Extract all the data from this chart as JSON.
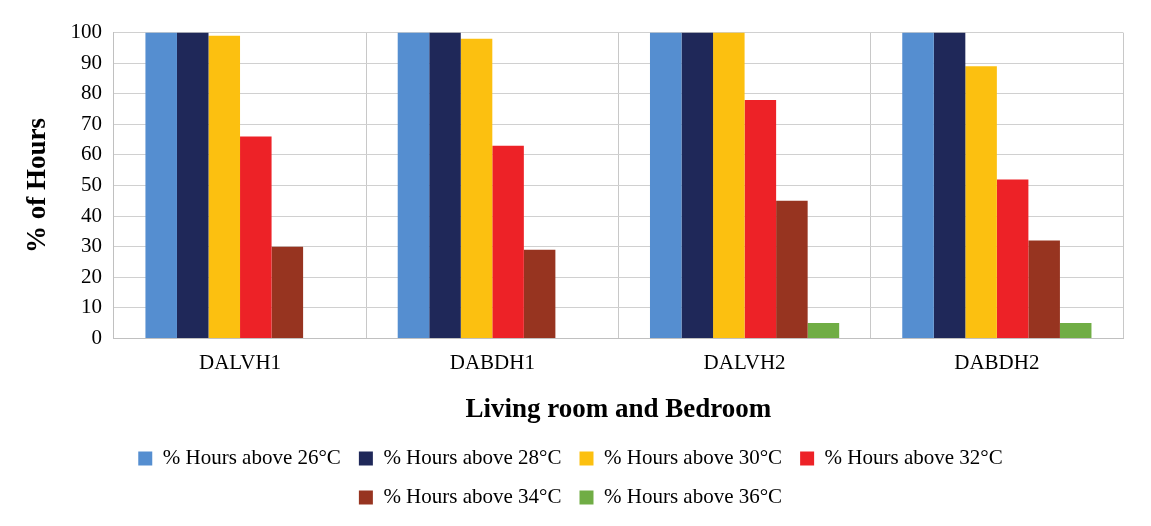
{
  "chart_data": {
    "type": "bar",
    "xlabel": "Living room and Bedroom",
    "ylabel": "% of Hours",
    "categories": [
      "DALVH1",
      "DABDH1",
      "DALVH2",
      "DABDH2"
    ],
    "series": [
      {
        "name": "% Hours above 26°C",
        "color": "#558ed0",
        "values": [
          100,
          100,
          100,
          100
        ]
      },
      {
        "name": "% Hours above 28°C",
        "color": "#1f2859",
        "values": [
          100,
          100,
          100,
          100
        ]
      },
      {
        "name": "% Hours above 30°C",
        "color": "#fcc010",
        "values": [
          99,
          98,
          100,
          89
        ]
      },
      {
        "name": "% Hours above 32°C",
        "color": "#ed2227",
        "values": [
          66,
          63,
          78,
          52
        ]
      },
      {
        "name": "% Hours above 34°C",
        "color": "#973420",
        "values": [
          30,
          29,
          45,
          32
        ]
      },
      {
        "name": "% Hours above 36°C",
        "color": "#70ad45",
        "values": [
          0,
          0,
          5,
          5
        ]
      }
    ],
    "ylim": [
      0,
      100
    ],
    "yticks": [
      0,
      10,
      20,
      30,
      40,
      50,
      60,
      70,
      80,
      90,
      100
    ],
    "grid": true,
    "legend": "bottom"
  }
}
